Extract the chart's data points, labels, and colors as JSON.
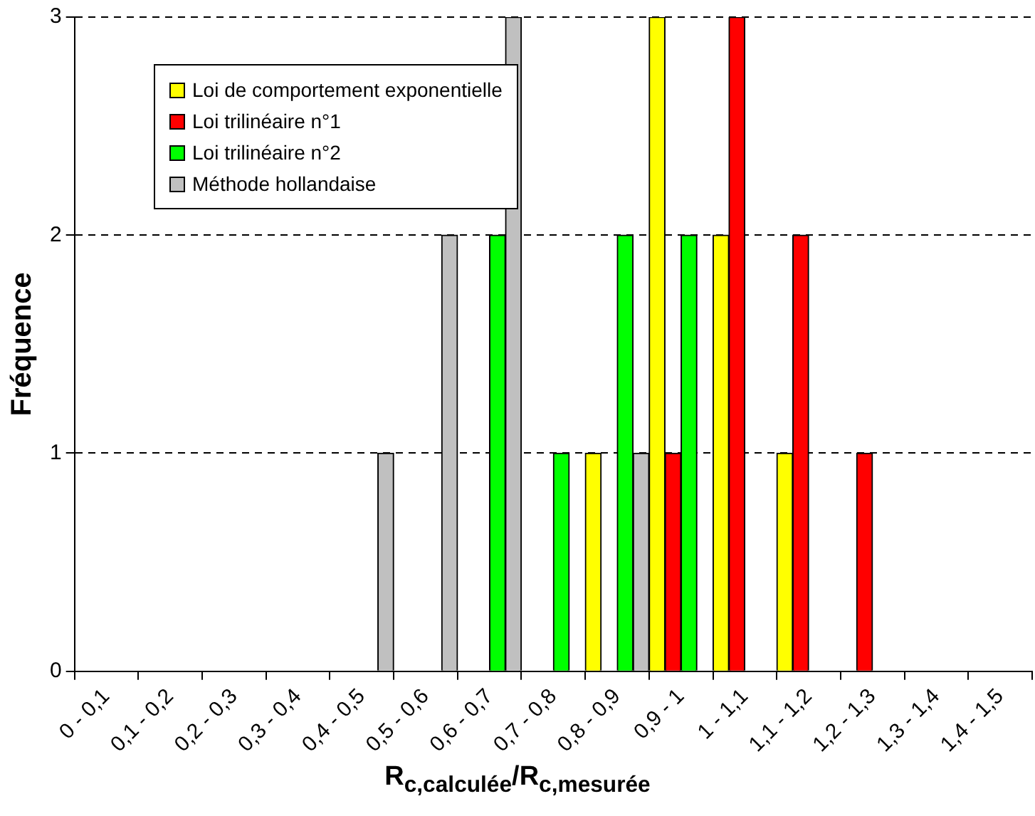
{
  "chart_data": {
    "type": "bar",
    "xlabel": "R$_{c,calculée}$/R$_{c,mesurée}$",
    "ylabel": "Fréquence",
    "categories": [
      "0 - 0,1",
      "0,1 - 0,2",
      "0,2 - 0,3",
      "0,3 - 0,4",
      "0,4 - 0,5",
      "0,5 - 0,6",
      "0,6 - 0,7",
      "0,7 - 0,8",
      "0,8 - 0,9",
      "0,9 - 1",
      "1 - 1,1",
      "1,1 - 1,2",
      "1,2 - 1,3",
      "1,3 - 1,4",
      "1,4 - 1,5"
    ],
    "series": [
      {
        "name": "Loi de comportement exponentielle",
        "color": "#ffff00",
        "values": [
          0,
          0,
          0,
          0,
          0,
          0,
          0,
          0,
          1,
          3,
          2,
          1,
          0,
          0,
          0
        ]
      },
      {
        "name": "Loi trilinéaire n°1",
        "color": "#ff0000",
        "values": [
          0,
          0,
          0,
          0,
          0,
          0,
          0,
          0,
          0,
          1,
          3,
          2,
          1,
          0,
          0
        ]
      },
      {
        "name": "Loi trilinéaire n°2",
        "color": "#00ff00",
        "values": [
          0,
          0,
          0,
          0,
          0,
          0,
          2,
          1,
          2,
          2,
          0,
          0,
          0,
          0,
          0
        ]
      },
      {
        "name": "Méthode hollandaise",
        "color": "#c0c0c0",
        "values": [
          0,
          0,
          0,
          0,
          1,
          2,
          3,
          0,
          1,
          0,
          0,
          0,
          0,
          0,
          0
        ]
      }
    ],
    "ylim": [
      0,
      3
    ],
    "yticks": [
      0,
      1,
      2,
      3
    ],
    "grid": "y",
    "legend": "top left"
  }
}
